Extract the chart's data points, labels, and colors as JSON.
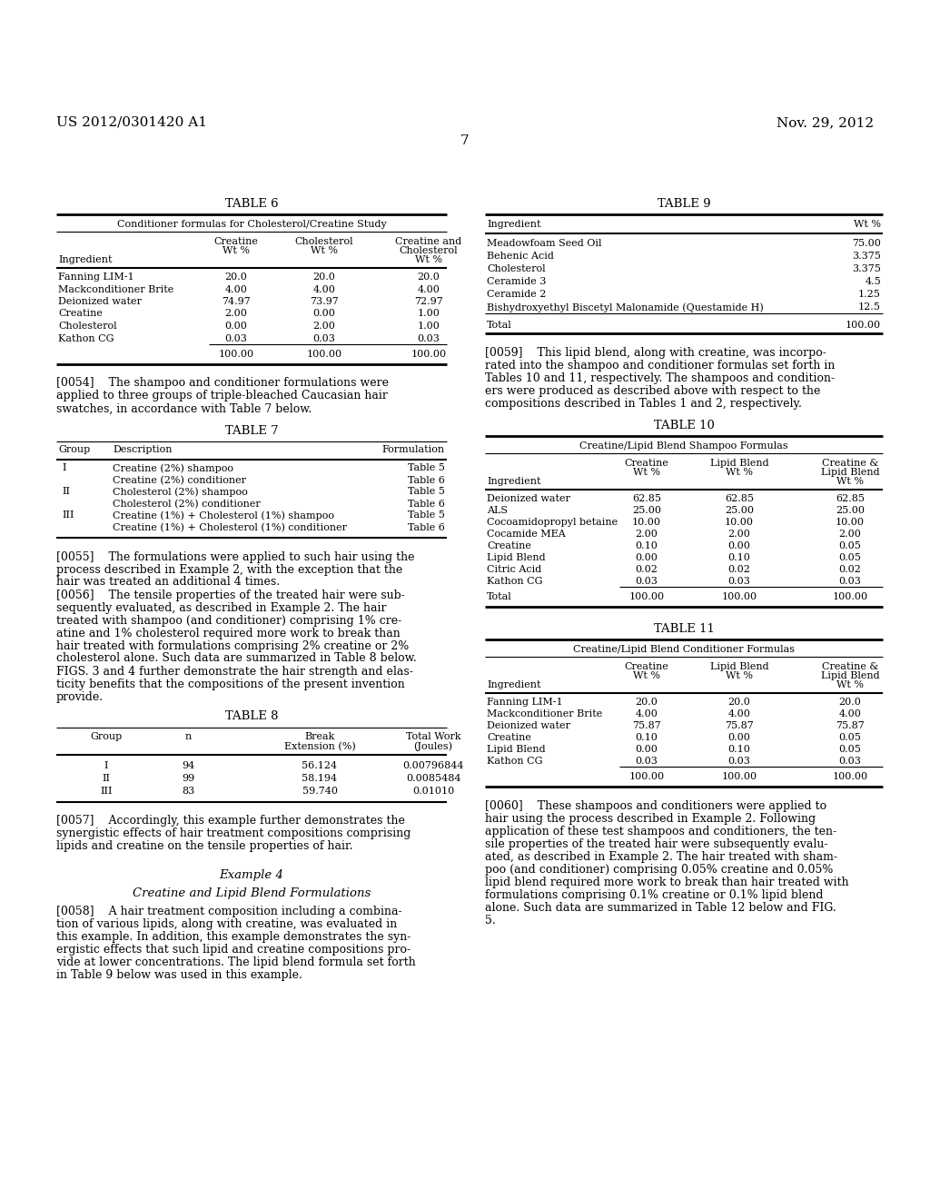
{
  "header_left": "US 2012/0301420 A1",
  "header_right": "Nov. 29, 2012",
  "page_number": "7",
  "background_color": "#ffffff",
  "table6_title": "TABLE 6",
  "table6_subtitle": "Conditioner formulas for Cholesterol/Creatine Study",
  "table6_rows": [
    [
      "Fanning LIM-1",
      "20.0",
      "20.0",
      "20.0"
    ],
    [
      "Mackconditioner Brite",
      "4.00",
      "4.00",
      "4.00"
    ],
    [
      "Deionized water",
      "74.97",
      "73.97",
      "72.97"
    ],
    [
      "Creatine",
      "2.00",
      "0.00",
      "1.00"
    ],
    [
      "Cholesterol",
      "0.00",
      "2.00",
      "1.00"
    ],
    [
      "Kathon CG",
      "0.03",
      "0.03",
      "0.03"
    ],
    [
      "",
      "100.00",
      "100.00",
      "100.00"
    ]
  ],
  "table9_title": "TABLE 9",
  "table9_rows": [
    [
      "Meadowfoam Seed Oil",
      "75.00"
    ],
    [
      "Behenic Acid",
      "3.375"
    ],
    [
      "Cholesterol",
      "3.375"
    ],
    [
      "Ceramide 3",
      "4.5"
    ],
    [
      "Ceramide 2",
      "1.25"
    ],
    [
      "Bishydroxyethyl Biscetyl Malonamide (Questamide H)",
      "12.5"
    ],
    [
      "Total",
      "100.00"
    ]
  ],
  "table7_title": "TABLE 7",
  "table7_rows": [
    [
      "I",
      "Creatine (2%) shampoo",
      "Table 5"
    ],
    [
      "",
      "Creatine (2%) conditioner",
      "Table 6"
    ],
    [
      "II",
      "Cholesterol (2%) shampoo",
      "Table 5"
    ],
    [
      "",
      "Cholesterol (2%) conditioner",
      "Table 6"
    ],
    [
      "III",
      "Creatine (1%) + Cholesterol (1%) shampoo",
      "Table 5"
    ],
    [
      "",
      "Creatine (1%) + Cholesterol (1%) conditioner",
      "Table 6"
    ]
  ],
  "table8_title": "TABLE 8",
  "table8_rows": [
    [
      "I",
      "94",
      "56.124",
      "0.00796844"
    ],
    [
      "II",
      "99",
      "58.194",
      "0.0085484"
    ],
    [
      "III",
      "83",
      "59.740",
      "0.01010"
    ]
  ],
  "table10_title": "TABLE 10",
  "table10_subtitle": "Creatine/Lipid Blend Shampoo Formulas",
  "table10_rows": [
    [
      "Deionized water",
      "62.85",
      "62.85",
      "62.85"
    ],
    [
      "ALS",
      "25.00",
      "25.00",
      "25.00"
    ],
    [
      "Cocoamidopropyl betaine",
      "10.00",
      "10.00",
      "10.00"
    ],
    [
      "Cocamide MEA",
      "2.00",
      "2.00",
      "2.00"
    ],
    [
      "Creatine",
      "0.10",
      "0.00",
      "0.05"
    ],
    [
      "Lipid Blend",
      "0.00",
      "0.10",
      "0.05"
    ],
    [
      "Citric Acid",
      "0.02",
      "0.02",
      "0.02"
    ],
    [
      "Kathon CG",
      "0.03",
      "0.03",
      "0.03"
    ],
    [
      "Total",
      "100.00",
      "100.00",
      "100.00"
    ]
  ],
  "table11_title": "TABLE 11",
  "table11_subtitle": "Creatine/Lipid Blend Conditioner Formulas",
  "table11_rows": [
    [
      "Fanning LIM-1",
      "20.0",
      "20.0",
      "20.0"
    ],
    [
      "Mackconditioner Brite",
      "4.00",
      "4.00",
      "4.00"
    ],
    [
      "Deionized water",
      "75.87",
      "75.87",
      "75.87"
    ],
    [
      "Creatine",
      "0.10",
      "0.00",
      "0.05"
    ],
    [
      "Lipid Blend",
      "0.00",
      "0.10",
      "0.05"
    ],
    [
      "Kathon CG",
      "0.03",
      "0.03",
      "0.03"
    ],
    [
      "",
      "100.00",
      "100.00",
      "100.00"
    ]
  ],
  "para0054_lines": [
    "[0054]    The shampoo and conditioner formulations were",
    "applied to three groups of triple-bleached Caucasian hair",
    "swatches, in accordance with Table 7 below."
  ],
  "para0055_lines": [
    "[0055]    The formulations were applied to such hair using the",
    "process described in Example 2, with the exception that the",
    "hair was treated an additional 4 times."
  ],
  "para0056_lines": [
    "[0056]    The tensile properties of the treated hair were sub-",
    "sequently evaluated, as described in Example 2. The hair",
    "treated with shampoo (and conditioner) comprising 1% cre-",
    "atine and 1% cholesterol required more work to break than",
    "hair treated with formulations comprising 2% creatine or 2%",
    "cholesterol alone. Such data are summarized in Table 8 below.",
    "FIGS. 3 and 4 further demonstrate the hair strength and elas-",
    "ticity benefits that the compositions of the present invention",
    "provide."
  ],
  "para0057_lines": [
    "[0057]    Accordingly, this example further demonstrates the",
    "synergistic effects of hair treatment compositions comprising",
    "lipids and creatine on the tensile properties of hair."
  ],
  "example4_title": "Example 4",
  "example4_subtitle": "Creatine and Lipid Blend Formulations",
  "para0058_lines": [
    "[0058]    A hair treatment composition including a combina-",
    "tion of various lipids, along with creatine, was evaluated in",
    "this example. In addition, this example demonstrates the syn-",
    "ergistic effects that such lipid and creatine compositions pro-",
    "vide at lower concentrations. The lipid blend formula set forth",
    "in Table 9 below was used in this example."
  ],
  "para0059_lines": [
    "[0059]    This lipid blend, along with creatine, was incorpo-",
    "rated into the shampoo and conditioner formulas set forth in",
    "Tables 10 and 11, respectively. The shampoos and condition-",
    "ers were produced as described above with respect to the",
    "compositions described in Tables 1 and 2, respectively."
  ],
  "para0060_lines": [
    "[0060]    These shampoos and conditioners were applied to",
    "hair using the process described in Example 2. Following",
    "application of these test shampoos and conditioners, the ten-",
    "sile properties of the treated hair were subsequently evalu-",
    "ated, as described in Example 2. The hair treated with sham-",
    "poo (and conditioner) comprising 0.05% creatine and 0.05%",
    "lipid blend required more work to break than hair treated with",
    "formulations comprising 0.1% creatine or 0.1% lipid blend",
    "alone. Such data are summarized in Table 12 below and FIG.",
    "5."
  ]
}
